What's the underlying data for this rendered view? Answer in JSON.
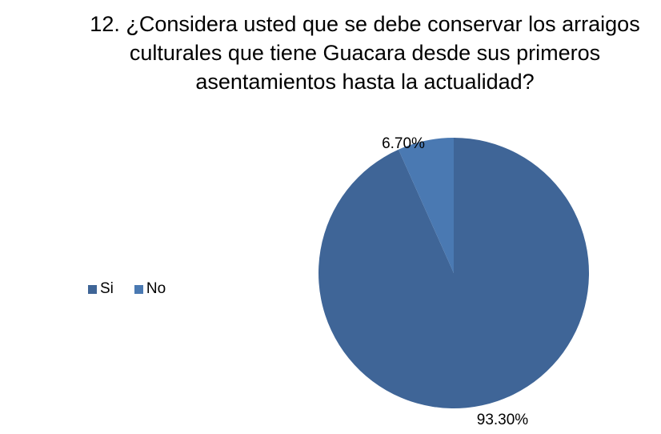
{
  "chart_data": {
    "type": "pie",
    "title_lines": [
      "12. ¿Considera usted que se debe conservar los arraigos",
      "culturales que tiene Guacara desde sus primeros",
      "asentamientos hasta la actualidad?"
    ],
    "categories": [
      "Si",
      "No"
    ],
    "values": [
      93.3,
      6.7
    ],
    "data_labels": [
      "93.30%",
      "6.70%"
    ],
    "colors": [
      "#3F6597",
      "#4A79B2"
    ],
    "legend_position": "left",
    "start_angle": "12 o'clock",
    "direction": "counterclockwise for first slice"
  }
}
